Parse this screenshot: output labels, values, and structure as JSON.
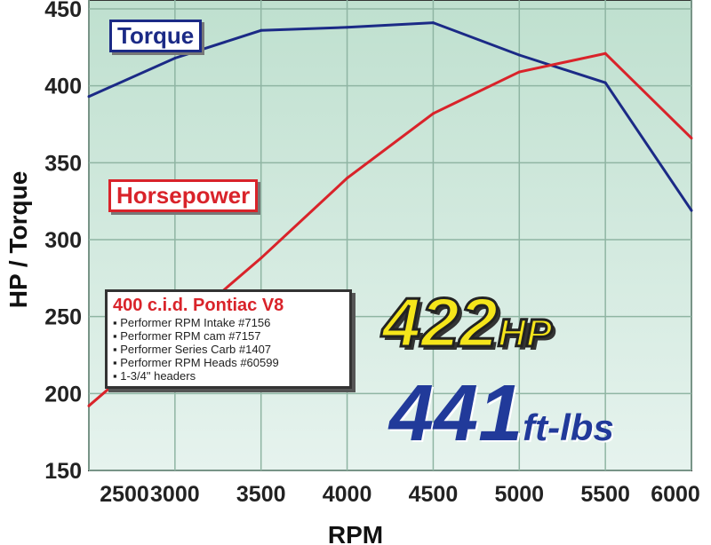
{
  "chart_data": {
    "type": "line",
    "xlabel": "RPM",
    "ylabel": "HP / Torque",
    "x": [
      2500,
      3000,
      3500,
      4000,
      4500,
      5000,
      5500,
      6000
    ],
    "xlim": [
      2500,
      6000
    ],
    "ylim": [
      150,
      450
    ],
    "xticks": [
      "2500",
      "3000",
      "3500",
      "4000",
      "4500",
      "5000",
      "5500",
      "6000"
    ],
    "yticks": [
      "150",
      "200",
      "250",
      "300",
      "350",
      "400",
      "450"
    ],
    "grid": true,
    "series": [
      {
        "name": "Torque",
        "color": "#1b2a86",
        "values": [
          393,
          418,
          436,
          438,
          441,
          420,
          402,
          319
        ]
      },
      {
        "name": "Horsepower",
        "color": "#d9232a",
        "values": [
          192,
          240,
          288,
          340,
          382,
          409,
          421,
          366
        ]
      }
    ]
  },
  "spec": {
    "title": "400 c.i.d. Pontiac V8",
    "items": [
      "Performer RPM Intake #7156",
      "Performer RPM cam #7157",
      "Performer Series Carb #1407",
      "Performer RPM Heads #60599",
      "1-3/4\" headers"
    ]
  },
  "headline": {
    "hp_value": "422",
    "hp_unit": "HP",
    "tq_value": "441",
    "tq_unit": "ft-lbs"
  }
}
